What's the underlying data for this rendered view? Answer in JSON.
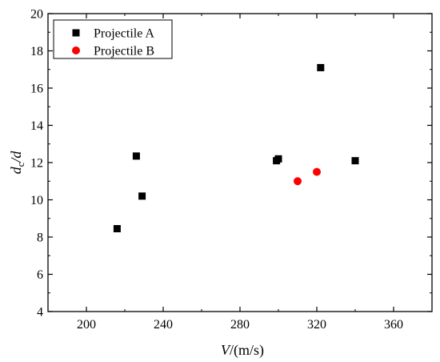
{
  "chart_data": {
    "type": "scatter",
    "xlim": [
      180,
      380
    ],
    "ylim": [
      4,
      20
    ],
    "xticks": [
      200,
      240,
      280,
      320,
      360
    ],
    "yticks": [
      4,
      6,
      8,
      10,
      12,
      14,
      16,
      18,
      20
    ],
    "xlabel": {
      "main": "V",
      "unit": "/(m/s)"
    },
    "ylabel": {
      "part1": "d",
      "sub": "c",
      "part2": "/d"
    },
    "grid": false,
    "legend_position": "top-left",
    "series": [
      {
        "name": "Projectile A",
        "marker": "square",
        "color": "#000000",
        "points": [
          {
            "x": 216,
            "y": 8.45
          },
          {
            "x": 226,
            "y": 12.35
          },
          {
            "x": 229,
            "y": 10.2
          },
          {
            "x": 299,
            "y": 12.1
          },
          {
            "x": 300,
            "y": 12.2
          },
          {
            "x": 322,
            "y": 17.1
          },
          {
            "x": 340,
            "y": 12.1
          }
        ]
      },
      {
        "name": "Projectile B",
        "marker": "circle",
        "color": "#ff0000",
        "points": [
          {
            "x": 310,
            "y": 11.0
          },
          {
            "x": 320,
            "y": 11.5
          }
        ]
      }
    ]
  }
}
